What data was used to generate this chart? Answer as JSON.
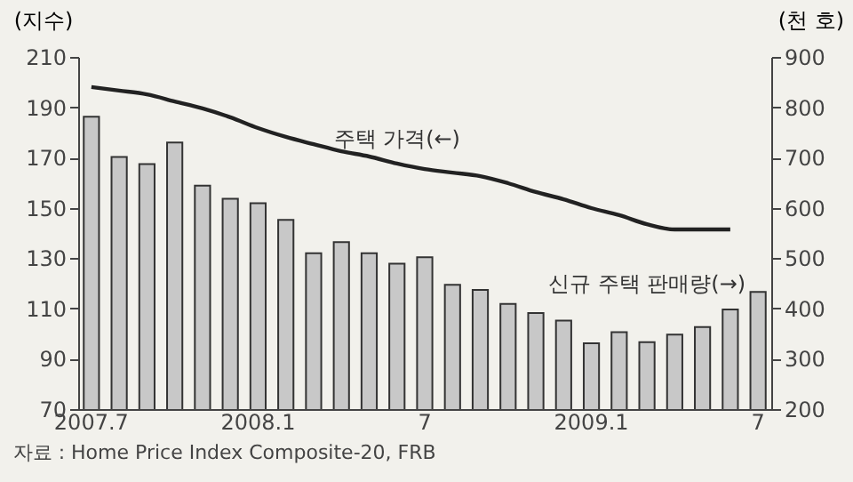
{
  "chart_data": {
    "type": "bar",
    "ylabel": "(지수)",
    "y2label": "(천 호)",
    "categories": [
      "2007.7",
      null,
      null,
      null,
      null,
      null,
      "2008.1",
      null,
      null,
      null,
      null,
      null,
      "7",
      null,
      null,
      null,
      null,
      null,
      "2009.1",
      null,
      null,
      null,
      null,
      null,
      "7"
    ],
    "ylim": [
      70,
      210
    ],
    "yticks": [
      70,
      90,
      110,
      130,
      150,
      170,
      190,
      210
    ],
    "y2lim": [
      200,
      900
    ],
    "y2ticks": [
      200,
      300,
      400,
      500,
      600,
      700,
      800,
      900
    ],
    "series": [
      {
        "name": "주택 가격(←)",
        "type": "line",
        "color": "#222222",
        "values": [
          198,
          196.6,
          195.1,
          192.3,
          189.5,
          186,
          181.7,
          178.2,
          175.3,
          172.5,
          170.4,
          167.6,
          165.4,
          164,
          162.6,
          159.8,
          156.3,
          153.4,
          149.9,
          147.1,
          143.5,
          141.4,
          141.4,
          141.4,
          null
        ]
      },
      {
        "name": "신규 주택 판매량(→)",
        "axis": "y2",
        "color": "#c8c8c8",
        "values": [
          781,
          701,
          687,
          730,
          644,
          618,
          609,
          576,
          510,
          532,
          510,
          489,
          502,
          447,
          437,
          409,
          391,
          376,
          331,
          353,
          333,
          348,
          363,
          398,
          433
        ]
      }
    ],
    "annotations": [
      "자료 : Home Price Index Composite-20, FRB"
    ]
  }
}
